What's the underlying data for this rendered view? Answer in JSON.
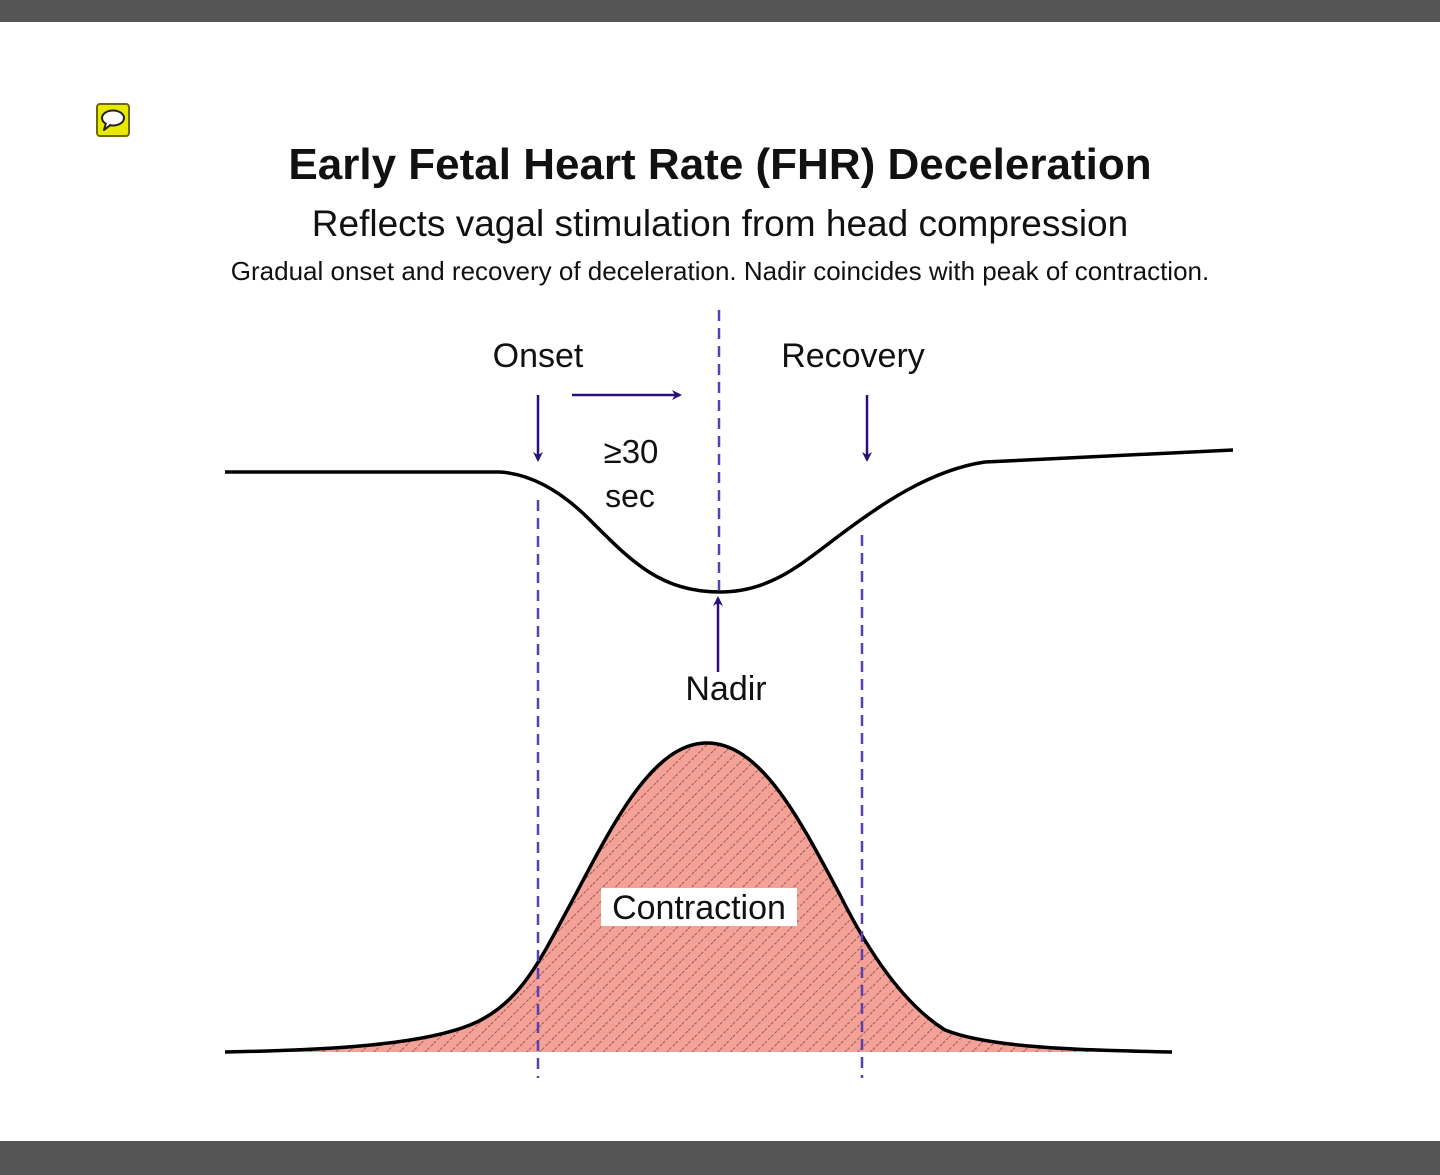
{
  "title": "Early Fetal Heart Rate (FHR) Deceleration",
  "subtitle": "Reflects vagal stimulation from head compression",
  "caption": "Gradual onset and recovery of deceleration. Nadir coincides with peak of contraction.",
  "labels": {
    "onset": "Onset",
    "recovery": "Recovery",
    "duration_value": "≥30",
    "duration_unit": "sec",
    "nadir": "Nadir",
    "contraction": "Contraction"
  },
  "icons": {
    "comment": "comment-icon"
  },
  "colors": {
    "arrow": "#2a0f7a",
    "dashed_line": "#5a3fb0",
    "contraction_fill": "#f4a197",
    "hatch": "#8a4a46",
    "curve": "#000000",
    "comment_icon_bg": "#e8e800"
  }
}
